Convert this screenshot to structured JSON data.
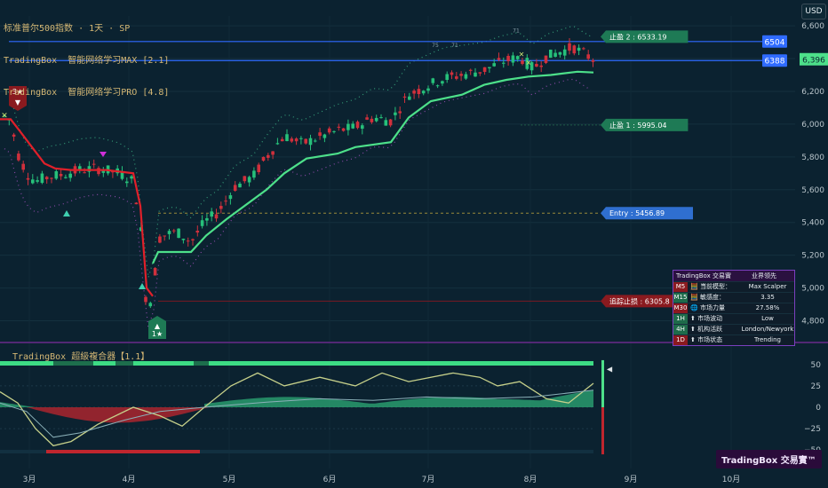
{
  "header": {
    "symbol_line": "标准普尔500指数 · 1天 · SP",
    "indicator_1": "TradingBox  智能网络学习MAX [2.1]",
    "indicator_2": "TradingBox  智能网络学习PRO [4.8]"
  },
  "currency_button": "USD",
  "sub_indicator_title": "TradingBox  超級複合器【1.1】",
  "branding": "TradingBox 交易實™",
  "colors": {
    "background": "#0b2230",
    "bull": "#26c07a",
    "bear": "#d0303c",
    "trail_green": "#4de08a",
    "trail_red": "#e0202a",
    "target_line": "#2f6bff",
    "label_green": "#1e7a55",
    "label_blue": "#2f6fd0",
    "label_red": "#8a1a1f"
  },
  "chart_data": [
    {
      "type": "candlestick",
      "title": "标准普尔500指数 · 1天 · SP",
      "x_labels": [
        "3月",
        "4月",
        "5月",
        "6月",
        "7月",
        "8月",
        "9月",
        "10月"
      ],
      "y_ticks": [
        4800,
        5000,
        5200,
        5400,
        5600,
        5800,
        6000,
        6200,
        6400,
        6600
      ],
      "y_tick_labels": [
        "4,800",
        "5,000",
        "5,200",
        "5,400",
        "5,600",
        "5,800",
        "6,000",
        "6,200",
        "6,400",
        "6,600"
      ],
      "ylim": [
        4700,
        6660
      ],
      "last_price": 6396,
      "last_price_label": "6,396",
      "price_lines": [
        {
          "label": "6504",
          "value": 6504,
          "color": "#2f6bff"
        },
        {
          "label": "6388",
          "value": 6388,
          "color": "#2f6bff"
        }
      ],
      "trade_labels": [
        {
          "text": "止盈 2 : 6533.19",
          "value": 6533.19,
          "kind": "green"
        },
        {
          "text": "止盈 1 : 5995.04",
          "value": 5995.04,
          "kind": "green"
        },
        {
          "text": "Entry : 5456.89",
          "value": 5456.89,
          "kind": "blue"
        },
        {
          "text": "追踪止损 : 6305.8",
          "value": 4920,
          "kind": "red"
        }
      ],
      "signals": [
        {
          "text": "3★",
          "direction": "sell"
        },
        {
          "text": "1★",
          "direction": "buy"
        }
      ],
      "peak_markers": [
        "75",
        "71",
        "71"
      ],
      "grid": true,
      "series_approx": "daily OHLC, ~125 bars, from ~6050 (early Mar) down to ~4830 low (early Apr) then up to ~6450 (mid Aug)"
    },
    {
      "type": "area",
      "title": "TradingBox  超級複合器【1.1】",
      "y_ticks": [
        50,
        25,
        0,
        -25,
        -50
      ],
      "y_tick_labels": [
        "50",
        "25",
        "0",
        "−25",
        "−50"
      ],
      "ylim": [
        -57,
        57
      ],
      "x_labels": [
        "3月",
        "4月",
        "5月",
        "6月",
        "7月",
        "8月",
        "9月",
        "10月"
      ]
    }
  ],
  "infobox": {
    "header_left": "TradingBox 交易實™",
    "header_right": "业界领先",
    "rows": [
      {
        "tf": "M5",
        "tf_color": "#8a1a1f",
        "label": "🧮 当前模型：",
        "value": "Max Scalper"
      },
      {
        "tf": "M15",
        "tf_color": "#1e6b4a",
        "label": "🧮 敏感度：",
        "value": "3.35"
      },
      {
        "tf": "M30",
        "tf_color": "#8a1a1f",
        "label": "🌐 市场力量",
        "value": "27.58%"
      },
      {
        "tf": "1H",
        "tf_color": "#1e6b4a",
        "label": "⬆ 市场波动",
        "value": "Low"
      },
      {
        "tf": "4H",
        "tf_color": "#1e6b4a",
        "label": "⬆ 机构活跃",
        "value": "London/Newyork"
      },
      {
        "tf": "1D",
        "tf_color": "#8a1a1f",
        "label": "⬆ 市场状态",
        "value": "Trending"
      }
    ]
  }
}
